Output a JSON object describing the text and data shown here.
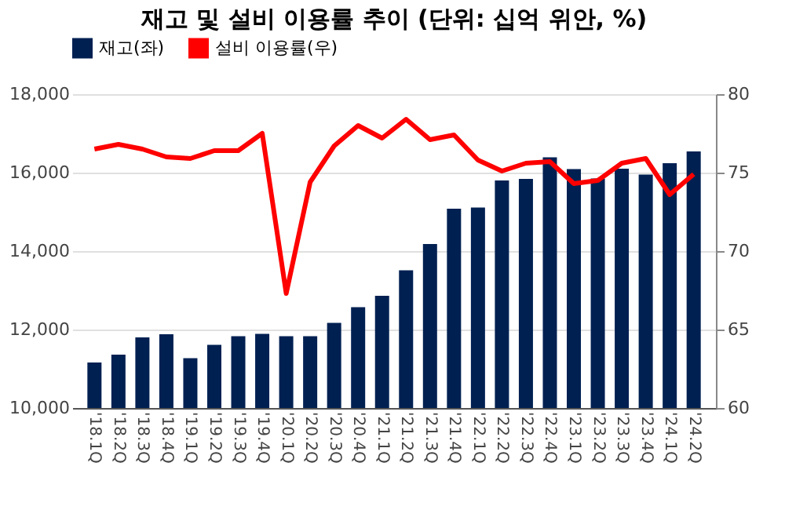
{
  "chart_data": {
    "type": "bar",
    "title": "재고 및 설비 이용률 추이 (단위: 십억 위안, %)",
    "categories": [
      "'18.1Q",
      "'18.2Q",
      "'18.3Q",
      "'18.4Q",
      "'19.1Q",
      "'19.2Q",
      "'19.3Q",
      "'19.4Q",
      "'20.1Q",
      "'20.2Q",
      "'20.3Q",
      "'20.4Q",
      "'21.1Q",
      "'21.2Q",
      "'21.3Q",
      "'21.4Q",
      "'22.1Q",
      "'22.2Q",
      "'22.3Q",
      "'22.4Q",
      "'23.1Q",
      "'23.2Q",
      "'23.3Q",
      "'23.4Q",
      "'24.1Q",
      "'24.2Q"
    ],
    "series": [
      {
        "name": "재고(좌)",
        "color": "#002052",
        "values": [
          11160,
          11360,
          11800,
          11880,
          11270,
          11610,
          11830,
          11890,
          11830,
          11830,
          12170,
          12570,
          12860,
          13510,
          14180,
          15080,
          15110,
          15800,
          15840,
          16390,
          16090,
          15850,
          16100,
          15950,
          16240,
          16540
        ]
      },
      {
        "name": "설비 이용률(우)",
        "color": "#ff0000",
        "type": "line",
        "axis": "y2",
        "values": [
          76.5,
          76.8,
          76.5,
          76.0,
          75.9,
          76.4,
          76.4,
          77.5,
          67.3,
          74.4,
          76.7,
          78.0,
          77.2,
          78.4,
          77.1,
          77.4,
          75.8,
          75.1,
          75.6,
          75.7,
          74.3,
          74.5,
          75.6,
          75.9,
          73.6,
          74.9
        ]
      }
    ],
    "ylim": [
      10000,
      18000
    ],
    "yticks": [
      {
        "value": 10000,
        "label": "10,000"
      },
      {
        "value": 12000,
        "label": "12,000"
      },
      {
        "value": 14000,
        "label": "14,000"
      },
      {
        "value": 16000,
        "label": "16,000"
      },
      {
        "value": 18000,
        "label": "18,000"
      }
    ],
    "y2lim": [
      60,
      80
    ],
    "y2ticks": [
      60,
      65,
      70,
      75,
      80
    ],
    "grid": "y",
    "legend": "top",
    "marker": "none",
    "line_style": "solid"
  }
}
